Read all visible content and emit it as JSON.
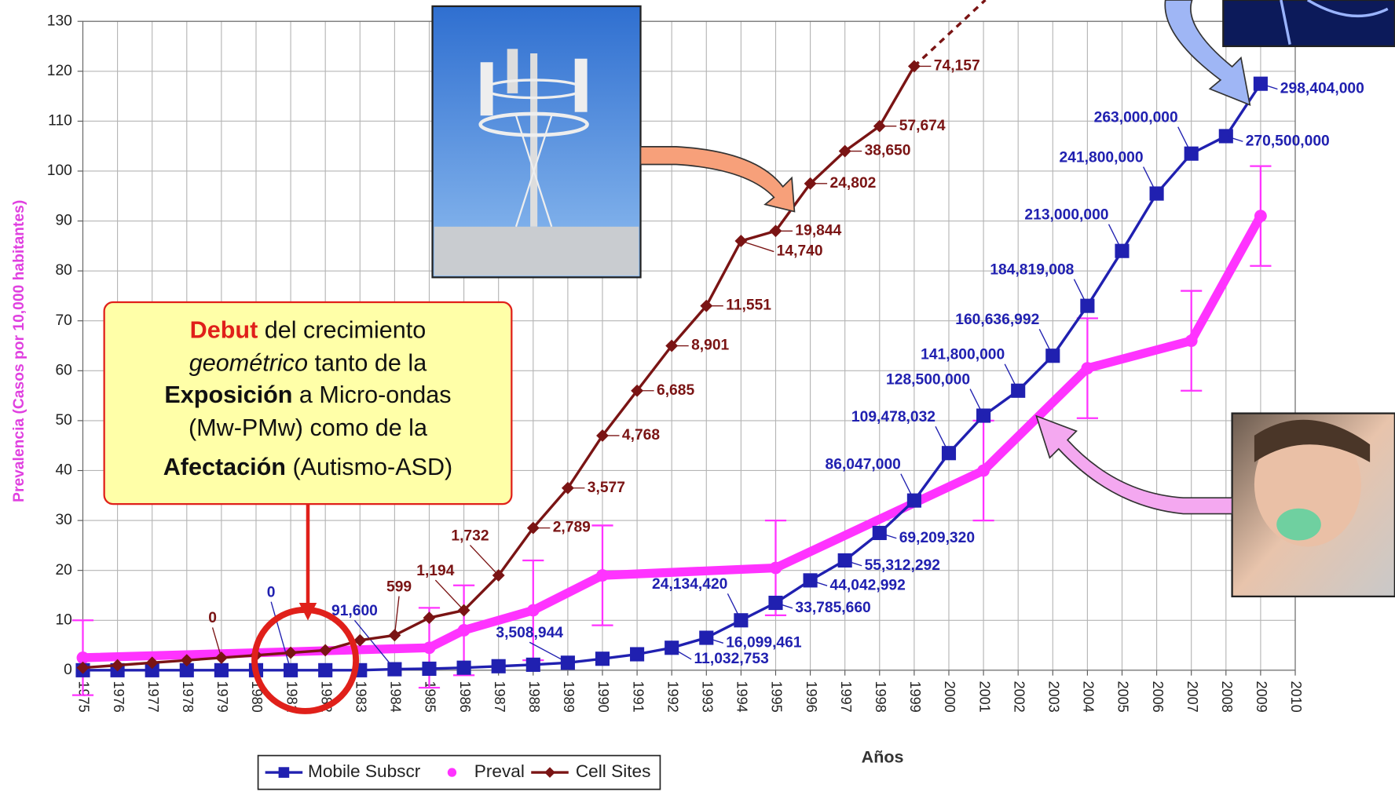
{
  "chart_data": {
    "type": "line",
    "y_label": "Prevalencia (Casos por 10,000 habitantes)",
    "x_label": "Años",
    "xlim": [
      1975,
      2010
    ],
    "xticks": [
      1975,
      1976,
      1977,
      1978,
      1979,
      1980,
      1981,
      1982,
      1983,
      1984,
      1985,
      1986,
      1987,
      1988,
      1989,
      1990,
      1991,
      1992,
      1993,
      1994,
      1995,
      1996,
      1997,
      1998,
      1999,
      2000,
      2001,
      2002,
      2003,
      2004,
      2005,
      2006,
      2007,
      2008,
      2009,
      2010
    ],
    "ylim": [
      0,
      130
    ],
    "yticks": [
      0,
      10,
      20,
      30,
      40,
      50,
      60,
      70,
      80,
      90,
      100,
      110,
      120,
      130
    ],
    "grid": true,
    "legend": "bottom-left",
    "series": [
      {
        "name": "Mobile Subscr",
        "color": "#2020b0",
        "marker": "square",
        "x": [
          1975,
          1976,
          1977,
          1978,
          1979,
          1980,
          1981,
          1982,
          1983,
          1984,
          1985,
          1986,
          1987,
          1988,
          1989,
          1990,
          1991,
          1992,
          1993,
          1994,
          1995,
          1996,
          1997,
          1998,
          1999,
          2000,
          2001,
          2002,
          2003,
          2004,
          2005,
          2006,
          2007,
          2008,
          2009
        ],
        "values": [
          0,
          0,
          0,
          0,
          0,
          0,
          0,
          0,
          0,
          0.2,
          0.3,
          0.5,
          0.8,
          1.1,
          1.5,
          2.3,
          3.2,
          4.5,
          6.5,
          10,
          13.5,
          18,
          22,
          27.5,
          34,
          43.5,
          51,
          56,
          63,
          73,
          84,
          95.5,
          103.5,
          107,
          117.5
        ],
        "labels": [
          null,
          null,
          null,
          null,
          null,
          null,
          "0",
          null,
          null,
          "91,600",
          null,
          null,
          null,
          null,
          "3,508,944",
          null,
          null,
          "11,032,753",
          "16,099,461",
          "24,134,420",
          "33,785,660",
          "44,042,992",
          "55,312,292",
          "69,209,320",
          "86,047,000",
          "109,478,032",
          "128,500,000",
          "141,800,000",
          "160,636,992",
          "184,819,008",
          "213,000,000",
          "241,800,000",
          "263,000,000",
          "270,500,000",
          "298,404,000"
        ]
      },
      {
        "name": "Preval",
        "color": "#ff33ff",
        "marker": "circle",
        "x": [
          1975,
          1985,
          1986,
          1988,
          1990,
          1995,
          2001,
          2004,
          2007,
          2009
        ],
        "values": [
          2.5,
          4.5,
          8,
          12,
          19,
          20.5,
          40,
          60.5,
          66,
          91
        ],
        "errors": [
          7.5,
          8,
          9,
          10,
          10,
          9.5,
          10,
          10,
          10,
          10
        ]
      },
      {
        "name": "Cell Sites",
        "color": "#7a1414",
        "marker": "diamond",
        "x": [
          1975,
          1976,
          1977,
          1978,
          1979,
          1980,
          1981,
          1982,
          1983,
          1984,
          1985,
          1986,
          1987,
          1988,
          1989,
          1990,
          1991,
          1992,
          1993,
          1994,
          1995,
          1996,
          1997,
          1998,
          1999
        ],
        "values": [
          0.5,
          1,
          1.5,
          2,
          2.5,
          3,
          3.5,
          4,
          6,
          7,
          10.5,
          12,
          19,
          28.5,
          36.5,
          47,
          56,
          65,
          73,
          86,
          88,
          97.5,
          104,
          109,
          121
        ],
        "labels": [
          null,
          null,
          null,
          null,
          "0",
          null,
          null,
          null,
          null,
          "599",
          null,
          "1,194",
          "1,732",
          "2,789",
          "3,577",
          "4,768",
          "6,685",
          "8,901",
          "11,551",
          "14,740",
          "19,844",
          "24,802",
          "38,650",
          "57,674",
          "74,157"
        ]
      }
    ],
    "callout": {
      "lines": [
        [
          {
            "text": "Debut",
            "bold": true,
            "color": "#e0201a"
          },
          {
            "text": " del crecimiento"
          }
        ],
        [
          {
            "text": "geométrico",
            "italic": true
          },
          {
            "text": " tanto de la"
          }
        ],
        [
          {
            "text": "Exposición",
            "bold": true
          },
          {
            "text": " a Micro-ondas"
          }
        ],
        [
          {
            "text": "(Mw-PMw) como de la"
          }
        ],
        [
          {
            "text": "Afectación",
            "bold": true
          },
          {
            "text": " (Autismo-ASD)"
          }
        ]
      ]
    }
  }
}
